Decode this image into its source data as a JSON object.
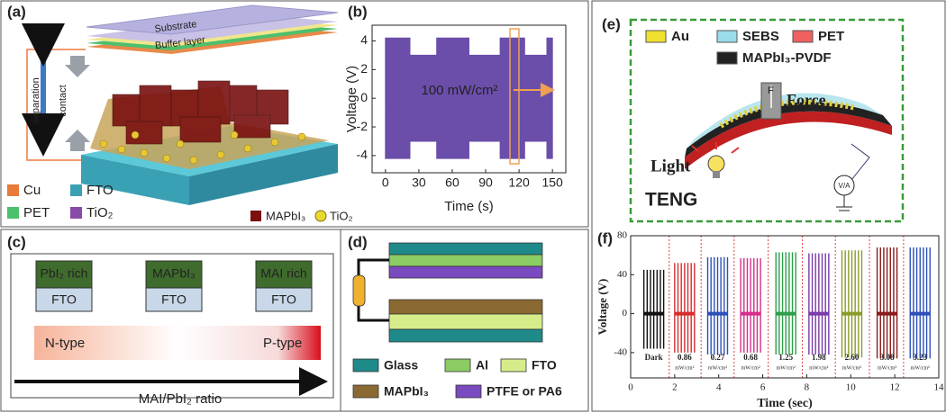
{
  "chart_data": [
    {
      "type": "area",
      "panel": "(b)",
      "xlabel": "Time (s)",
      "ylabel": "Voltage (V)",
      "annotation": "100 mW/cm²",
      "x": [
        0,
        22,
        22,
        46,
        46,
        75,
        75,
        103,
        103,
        125,
        125,
        145,
        145,
        150
      ],
      "series": [
        {
          "color": "#6a4ea9",
          "values": [
            4.2,
            4.2,
            3,
            3,
            4.2,
            4.2,
            3,
            3,
            4.2,
            4.2,
            3,
            3,
            4.2,
            4.2
          ]
        },
        {
          "color": "#6a4ea9",
          "values": [
            -4.2,
            -4.2,
            -3,
            -3,
            -4.2,
            -4.2,
            -3,
            -3,
            -4.2,
            -4.2,
            -3,
            -3,
            -4.2,
            -4.2
          ]
        }
      ],
      "xlim": [
        -12,
        162
      ],
      "ylim": [
        -5.2,
        5.1
      ],
      "xticks": [
        0,
        30,
        60,
        90,
        120,
        150
      ],
      "yticks": [
        -4,
        -2,
        0,
        2,
        4
      ]
    },
    {
      "type": "spike",
      "panel": "(f)",
      "xlabel": "Time (sec)",
      "ylabel": "Voltage (V)",
      "unit": "mW/cm²",
      "series": [
        {
          "name": "Dark",
          "color": "#111111",
          "x": [
            0.6,
            1.5
          ],
          "peak": 45,
          "trough": -36
        },
        {
          "name": "0.86",
          "color": "#d62c2c",
          "x": [
            2.0,
            2.9
          ],
          "peak": 52,
          "trough": -40
        },
        {
          "name": "0.27",
          "color": "#2c4fb8",
          "x": [
            3.5,
            4.4
          ],
          "peak": 58,
          "trough": -42
        },
        {
          "name": "0.68",
          "color": "#d62c8c",
          "x": [
            5.0,
            5.9
          ],
          "peak": 57,
          "trough": -40
        },
        {
          "name": "1.25",
          "color": "#2e9e4a",
          "x": [
            6.6,
            7.5
          ],
          "peak": 63,
          "trough": -42
        },
        {
          "name": "1.98",
          "color": "#7a3aa8",
          "x": [
            8.1,
            9.0
          ],
          "peak": 62,
          "trough": -42
        },
        {
          "name": "2.60",
          "color": "#8c9a2a",
          "x": [
            9.6,
            10.5
          ],
          "peak": 65,
          "trough": -45
        },
        {
          "name": "3.08",
          "color": "#8a1a1a",
          "x": [
            11.2,
            12.1
          ],
          "peak": 68,
          "trough": -46
        },
        {
          "name": "3.23",
          "color": "#2c4fb8",
          "x": [
            12.7,
            13.6
          ],
          "peak": 68,
          "trough": -46
        }
      ],
      "xlim": [
        0,
        14
      ],
      "ylim": [
        -66,
        80
      ],
      "xticks": [
        0,
        2,
        4,
        6,
        8,
        10,
        12,
        14
      ],
      "yticks": [
        -40,
        0,
        40,
        80
      ]
    }
  ],
  "panels": {
    "a": {
      "label": "(a)",
      "substrate": "Substrate",
      "buffer": "Buffer layer",
      "separation": "separation",
      "contact": "contact",
      "legend": [
        "Cu",
        "FTO",
        "PET",
        "TiO₂",
        "MAPbI₃",
        "TiO₂"
      ]
    },
    "c": {
      "label": "(c)",
      "boxes": [
        {
          "top": "PbI₂ rich",
          "bottom": "FTO"
        },
        {
          "top": "MAPbI₃",
          "bottom": "FTO"
        },
        {
          "top": "MAI rich",
          "bottom": "FTO"
        }
      ],
      "left": "N-type",
      "right": "P-type",
      "axis": "MAI/PbI₂ ratio"
    },
    "d": {
      "label": "(d)",
      "legend": [
        "Glass",
        "Al",
        "FTO",
        "MAPbI₃",
        "PTFE or PA6"
      ]
    },
    "e": {
      "label": "(e)",
      "legend": [
        "Au",
        "SEBS",
        "PET",
        "MAPbI₃-PVDF"
      ],
      "f": "F",
      "force": "Force",
      "light": "Light",
      "teng": "TENG",
      "meter": "V/A"
    }
  }
}
